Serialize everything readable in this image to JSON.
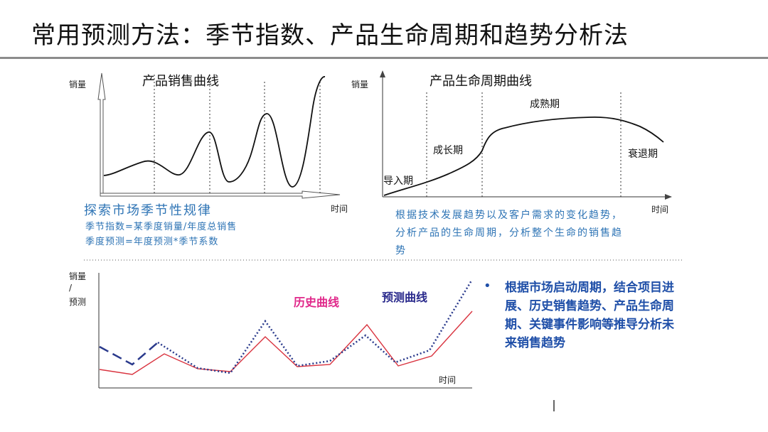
{
  "title": "常用预测方法：季节指数、产品生命周期和趋势分析法",
  "top_left": {
    "title": "产品销售曲线",
    "ylabel": "销量",
    "xlabel": "时间",
    "heading": "探索市场季节性规律",
    "line1": "季节指数=某季度销量/年度总销售",
    "line2": "季度预测=年度预测*季节系数"
  },
  "top_right": {
    "title": "产品生命周期曲线",
    "ylabel": "销量",
    "xlabel": "时间",
    "phases": [
      "导入期",
      "成长期",
      "成熟期",
      "衰退期"
    ],
    "description": "根据技术发展趋势以及客户需求的变化趋势，分析产品的生命周期，分析整个生命的销售趋势"
  },
  "bottom": {
    "ylabel_top": "销量",
    "ylabel_mid": "/",
    "ylabel_bottom": "预测",
    "xlabel": "时间",
    "legend_history": "历史曲线",
    "legend_forecast": "预测曲线",
    "history_color": "#d9333f",
    "forecast_color": "#2a3a8c",
    "bullet": "根据市场启动周期，结合项目进展、历史销售趋势、产品生命周期、关键事件影响等推导分析未来销售趋势"
  }
}
